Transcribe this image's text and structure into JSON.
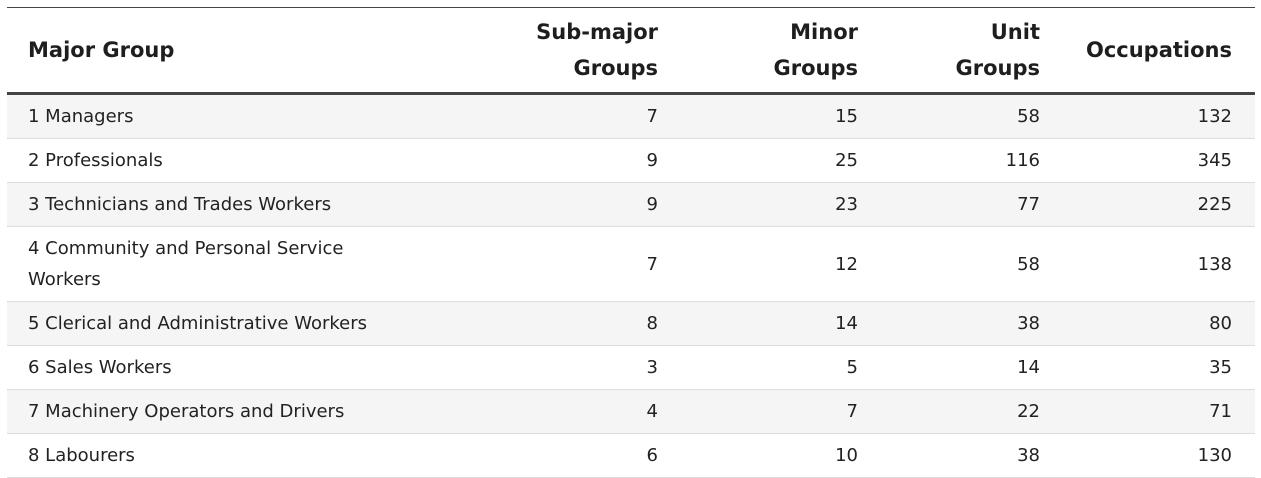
{
  "table": {
    "headers": {
      "major_group": "Major Group",
      "sub_major_groups": [
        "Sub-major",
        "Groups"
      ],
      "minor_groups": [
        "Minor",
        "Groups"
      ],
      "unit_groups": [
        "Unit",
        "Groups"
      ],
      "occupations": "Occupations"
    },
    "rows": [
      {
        "major_group": "1 Managers",
        "sub_major_groups": "7",
        "minor_groups": "15",
        "unit_groups": "58",
        "occupations": "132"
      },
      {
        "major_group": "2 Professionals",
        "sub_major_groups": "9",
        "minor_groups": "25",
        "unit_groups": "116",
        "occupations": "345"
      },
      {
        "major_group": "3 Technicians and Trades Workers",
        "sub_major_groups": "9",
        "minor_groups": "23",
        "unit_groups": "77",
        "occupations": "225"
      },
      {
        "major_group": "4 Community and Personal Service Workers",
        "sub_major_groups": "7",
        "minor_groups": "12",
        "unit_groups": "58",
        "occupations": "138"
      },
      {
        "major_group": "5 Clerical and Administrative Workers",
        "sub_major_groups": "8",
        "minor_groups": "14",
        "unit_groups": "38",
        "occupations": "80"
      },
      {
        "major_group": "6 Sales Workers",
        "sub_major_groups": "3",
        "minor_groups": "5",
        "unit_groups": "14",
        "occupations": "35"
      },
      {
        "major_group": "7 Machinery Operators and Drivers",
        "sub_major_groups": "4",
        "minor_groups": "7",
        "unit_groups": "22",
        "occupations": "71"
      },
      {
        "major_group": "8 Labourers",
        "sub_major_groups": "6",
        "minor_groups": "10",
        "unit_groups": "38",
        "occupations": "130"
      }
    ]
  }
}
